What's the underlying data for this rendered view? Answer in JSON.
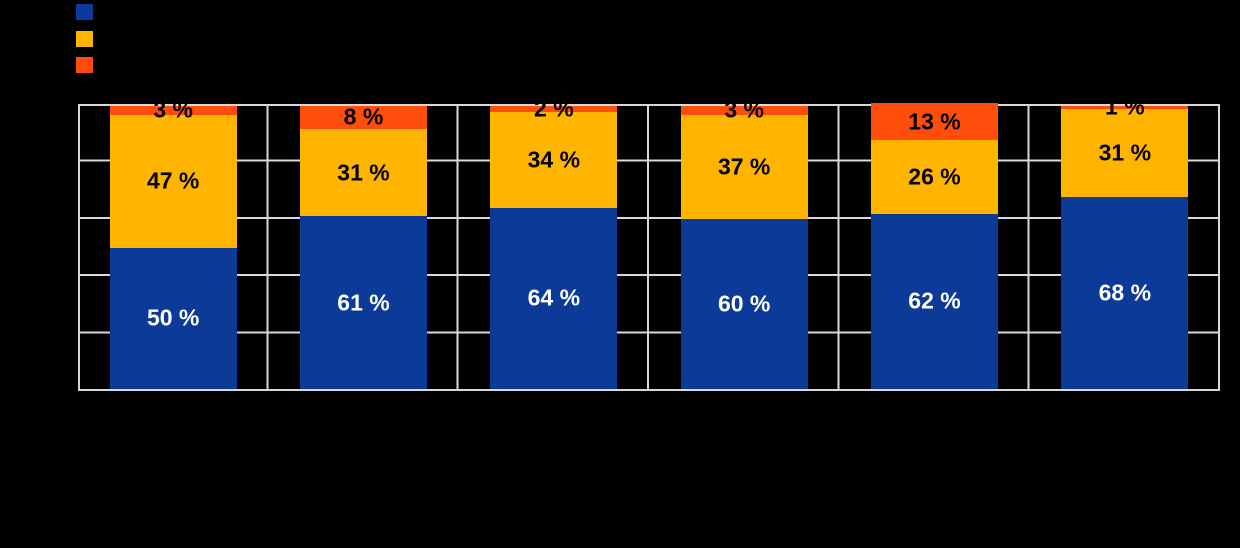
{
  "canvas_background": "#000000",
  "grid_color": "#d9d9d9",
  "legend": {
    "position": "top-left",
    "items": [
      {
        "name": "series-blue",
        "color": "#0b3a99",
        "label": ""
      },
      {
        "name": "series-orange",
        "color": "#ffb400",
        "label": ""
      },
      {
        "name": "series-red",
        "color": "#ff4e0c",
        "label": ""
      }
    ]
  },
  "chart_data": {
    "type": "bar",
    "stacked": true,
    "orientation": "vertical",
    "title": "",
    "xlabel": "",
    "ylabel": "",
    "ylim": [
      0,
      100
    ],
    "grid": true,
    "gridline_color": "#d9d9d9",
    "legend_position": "top-left",
    "categories": [
      "",
      "",
      "",
      "",
      "",
      ""
    ],
    "value_suffix": " %",
    "series": [
      {
        "name": "series-blue",
        "color": "#0b3a99",
        "label_color": "#ffffff",
        "values": [
          50,
          61,
          64,
          60,
          62,
          68
        ],
        "labels": [
          "50 %",
          "61 %",
          "64 %",
          "60 %",
          "62 %",
          "68 %"
        ]
      },
      {
        "name": "series-orange",
        "color": "#ffb400",
        "label_color": "#000000",
        "values": [
          47,
          31,
          34,
          37,
          26,
          31
        ],
        "labels": [
          "47 %",
          "31 %",
          "34 %",
          "37 %",
          "26 %",
          "31 %"
        ]
      },
      {
        "name": "series-red",
        "color": "#ff4e0c",
        "label_color": "#000000",
        "values": [
          3,
          8,
          2,
          3,
          13,
          1
        ],
        "labels": [
          "3 %",
          "8 %",
          "2 %",
          "3 %",
          "13 %",
          "1 %"
        ]
      }
    ]
  }
}
